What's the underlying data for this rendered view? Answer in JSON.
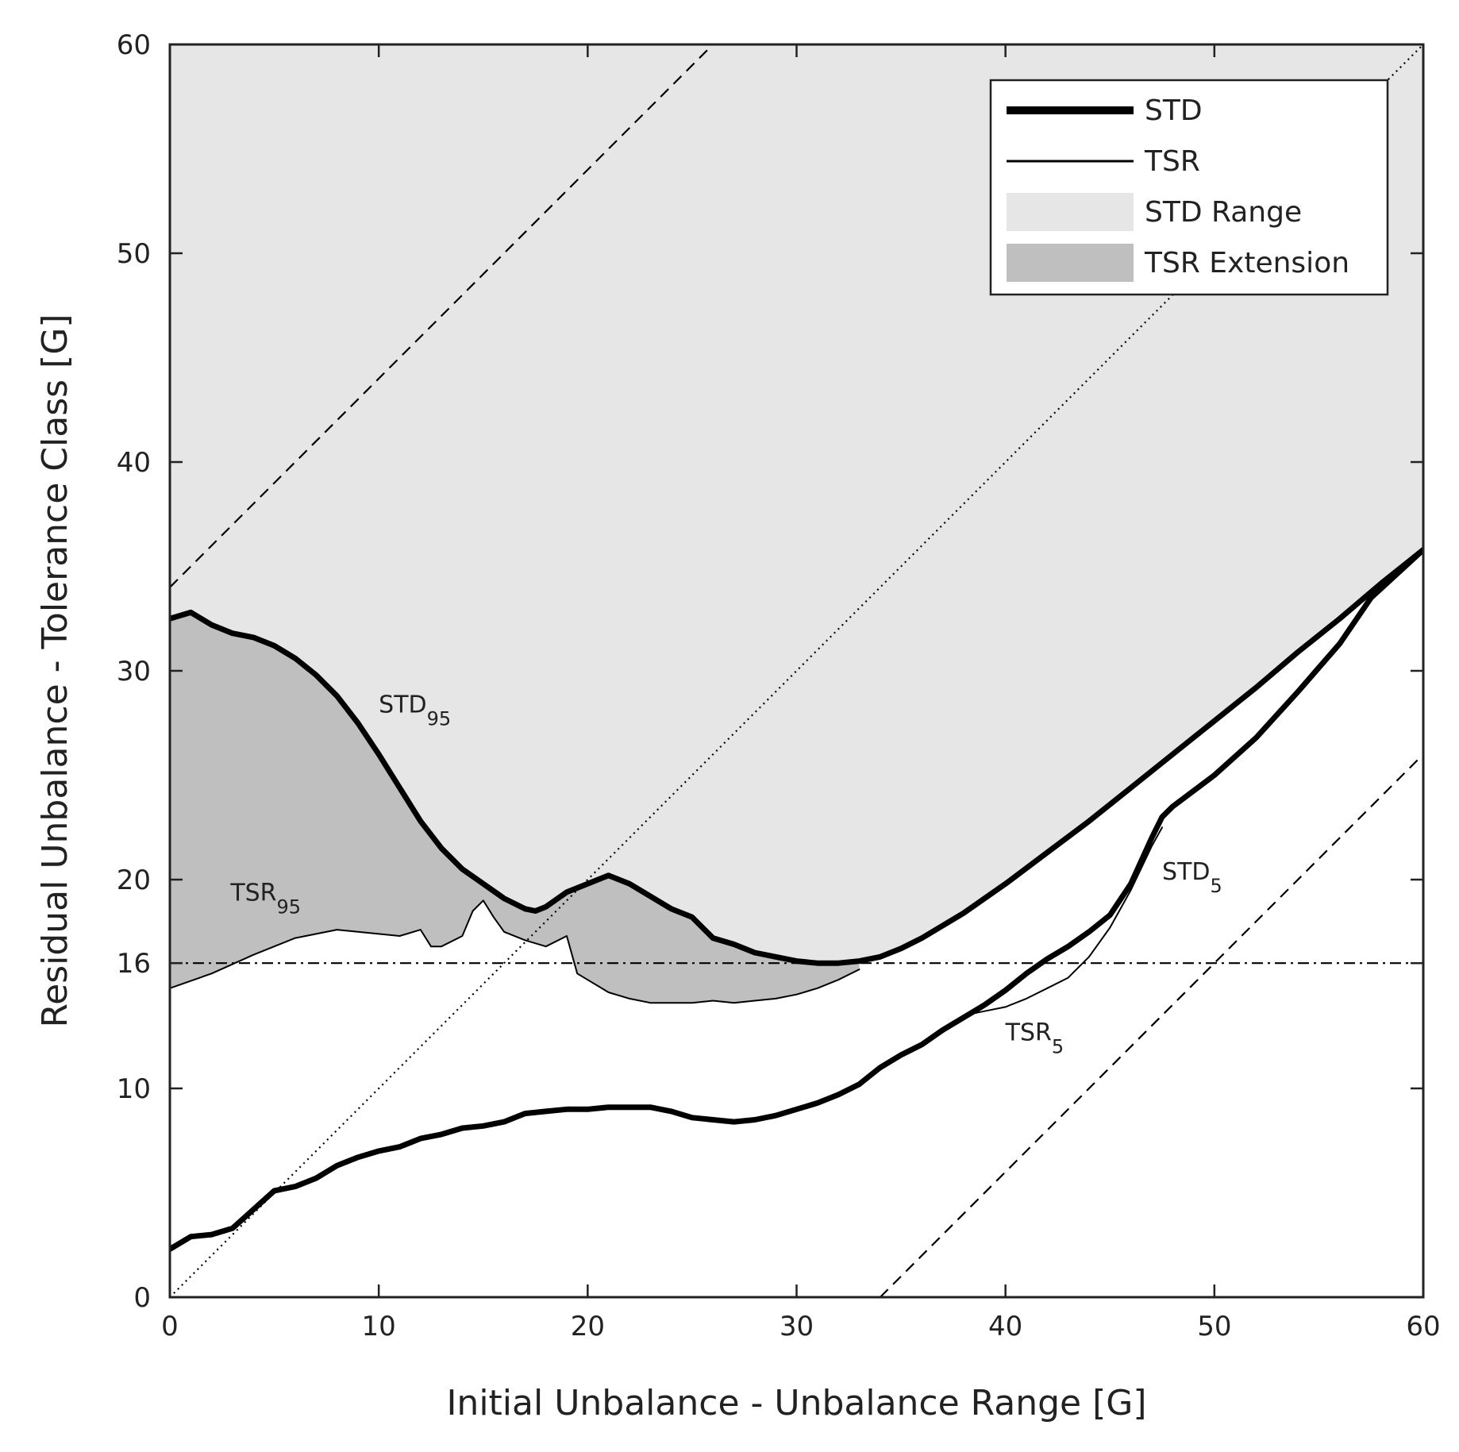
{
  "chart_data": {
    "type": "line",
    "xlabel": "Initial Unbalance - Unbalance Range [G]",
    "ylabel": "Residual Unbalance - Tolerance Class [G]",
    "xlim": [
      0,
      60
    ],
    "ylim": [
      0,
      60
    ],
    "x_ticks": [
      0,
      10,
      20,
      30,
      40,
      50,
      60
    ],
    "y_ticks": [
      0,
      10,
      16,
      20,
      30,
      40,
      50,
      60
    ],
    "x_tick_labels": [
      "0",
      "10",
      "20",
      "30",
      "40",
      "50",
      "60"
    ],
    "y_tick_labels": [
      "0",
      "10",
      "16",
      "20",
      "30",
      "40",
      "50",
      "60"
    ],
    "legend_position": "top-right",
    "legend": [
      {
        "label": "STD",
        "kind": "thick-line"
      },
      {
        "label": "TSR",
        "kind": "thin-line"
      },
      {
        "label": "STD Range",
        "kind": "light-fill"
      },
      {
        "label": "TSR Extension",
        "kind": "dark-fill"
      }
    ],
    "colors": {
      "std_range": "#e6e6e6",
      "tsr_extension": "#bfbfbf",
      "line": "#000000"
    },
    "series": [
      {
        "name": "STD95",
        "x": [
          0,
          1,
          2,
          3,
          4,
          5,
          6,
          7,
          8,
          9,
          10,
          11,
          12,
          13,
          14,
          15,
          16,
          17,
          17.5,
          18,
          19,
          20,
          21,
          22,
          23,
          24,
          25,
          26,
          27,
          28,
          29,
          30,
          31,
          32,
          33,
          34,
          35,
          36,
          38,
          40,
          42,
          44,
          46,
          48,
          50,
          52,
          54,
          56,
          58,
          60
        ],
        "y": [
          32.5,
          32.8,
          32.2,
          31.8,
          31.6,
          31.2,
          30.6,
          29.8,
          28.8,
          27.5,
          26,
          24.4,
          22.8,
          21.5,
          20.5,
          19.8,
          19.1,
          18.6,
          18.5,
          18.7,
          19.4,
          19.8,
          20.2,
          19.8,
          19.2,
          18.6,
          18.2,
          17.2,
          16.9,
          16.5,
          16.3,
          16.1,
          16,
          16,
          16.1,
          16.3,
          16.7,
          17.2,
          18.4,
          19.8,
          21.3,
          22.8,
          24.4,
          26,
          27.6,
          29.2,
          30.9,
          32.5,
          34.2,
          35.8
        ]
      },
      {
        "name": "TSR95",
        "x": [
          0,
          2,
          4,
          6,
          7,
          8,
          9,
          10,
          11,
          12,
          12.5,
          13,
          14,
          14.5,
          15,
          15.5,
          16,
          17,
          18,
          19,
          19.5,
          20,
          21,
          22,
          23,
          24,
          25,
          26,
          27,
          28,
          29,
          30,
          31,
          32,
          33
        ],
        "y": [
          14.8,
          15.5,
          16.4,
          17.2,
          17.4,
          17.6,
          17.5,
          17.4,
          17.3,
          17.6,
          16.8,
          16.8,
          17.3,
          18.5,
          19,
          18.2,
          17.5,
          17.1,
          16.8,
          17.3,
          15.5,
          15.2,
          14.6,
          14.3,
          14.1,
          14.1,
          14.1,
          14.2,
          14.1,
          14.2,
          14.3,
          14.5,
          14.8,
          15.2,
          15.7
        ]
      },
      {
        "name": "STD5",
        "x": [
          0,
          1,
          2,
          3,
          4,
          5,
          6,
          7,
          8,
          9,
          10,
          11,
          12,
          13,
          14,
          15,
          16,
          17,
          18,
          19,
          20,
          21,
          22,
          23,
          24,
          25,
          26,
          27,
          28,
          29,
          30,
          31,
          32,
          33,
          34,
          35,
          36,
          37,
          38,
          39,
          40,
          41,
          42,
          43,
          44,
          45,
          46,
          47,
          47.5,
          48,
          50,
          52,
          54,
          56,
          57.5,
          60
        ],
        "y": [
          2.3,
          2.9,
          3,
          3.3,
          4.2,
          5.1,
          5.3,
          5.7,
          6.3,
          6.7,
          7,
          7.2,
          7.6,
          7.8,
          8.1,
          8.2,
          8.4,
          8.8,
          8.9,
          9,
          9,
          9.1,
          9.1,
          9.1,
          8.9,
          8.6,
          8.5,
          8.4,
          8.5,
          8.7,
          9,
          9.3,
          9.7,
          10.2,
          11,
          11.6,
          12.1,
          12.8,
          13.4,
          14,
          14.7,
          15.5,
          16.2,
          16.8,
          17.5,
          18.3,
          19.8,
          22,
          23,
          23.5,
          25,
          26.8,
          29,
          31.3,
          33.5,
          35.8
        ]
      },
      {
        "name": "TSR5",
        "x": [
          38,
          39,
          40,
          41,
          42,
          43,
          44,
          45,
          46,
          47,
          47.5
        ],
        "y": [
          13.5,
          13.7,
          13.9,
          14.3,
          14.8,
          15.3,
          16.3,
          17.7,
          19.5,
          21.6,
          22.5
        ]
      }
    ],
    "reference_lines": [
      {
        "name": "dashed-upper",
        "style": "dashed",
        "x": [
          0,
          26
        ],
        "y": [
          34,
          60
        ]
      },
      {
        "name": "dashed-lower",
        "style": "dashed",
        "x": [
          34,
          60
        ],
        "y": [
          0,
          26
        ]
      },
      {
        "name": "dotted-identity",
        "style": "dotted",
        "x": [
          0,
          60
        ],
        "y": [
          0,
          60
        ]
      },
      {
        "name": "dashdot-16",
        "style": "dashdot",
        "x": [
          0,
          60
        ],
        "y": [
          16,
          16
        ]
      }
    ],
    "annotations": [
      {
        "base": "STD",
        "sub": "95",
        "x": 10,
        "y": 28
      },
      {
        "base": "TSR",
        "sub": "95",
        "x": 2.9,
        "y": 19
      },
      {
        "base": "STD",
        "sub": "5",
        "x": 47.5,
        "y": 20
      },
      {
        "base": "TSR",
        "sub": "5",
        "x": 40,
        "y": 12.3
      }
    ]
  }
}
